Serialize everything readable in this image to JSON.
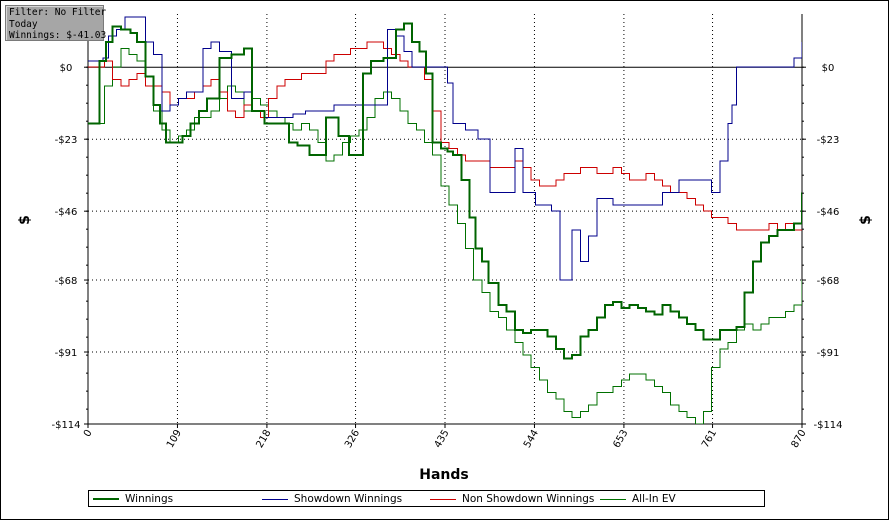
{
  "filter_box": {
    "line1": "Filter: No Filter",
    "line2": "Today",
    "line3": "Winnings: $-41.03"
  },
  "chart_data": {
    "type": "line",
    "title": "",
    "xlabel": "Hands",
    "ylabel": "$",
    "xlim": [
      0,
      870
    ],
    "ylim": [
      -114,
      17
    ],
    "x_ticks": [
      "0",
      "109",
      "218",
      "326",
      "435",
      "544",
      "653",
      "761",
      "870"
    ],
    "y_ticks": [
      "$0",
      "-$23",
      "-$46",
      "-$68",
      "-$91",
      "-$114"
    ],
    "y_tick_values": [
      0,
      -23,
      -46,
      -68,
      -91,
      -114
    ],
    "grid": true,
    "zero_line": true,
    "legend_position": "bottom",
    "series": [
      {
        "name": "Winnings",
        "color": "#006400",
        "width": 2,
        "x": [
          0,
          8,
          14,
          22,
          30,
          40,
          52,
          60,
          70,
          80,
          88,
          95,
          105,
          115,
          125,
          135,
          145,
          160,
          175,
          190,
          200,
          215,
          230,
          245,
          255,
          270,
          290,
          305,
          318,
          326,
          335,
          345,
          360,
          375,
          385,
          395,
          404,
          412,
          420,
          430,
          438,
          445,
          455,
          465,
          472,
          480,
          488,
          500,
          510,
          520,
          530,
          540,
          550,
          560,
          570,
          580,
          590,
          600,
          610,
          620,
          630,
          640,
          650,
          660,
          670,
          680,
          690,
          700,
          710,
          720,
          730,
          740,
          750,
          760,
          770,
          780,
          790,
          800,
          810,
          820,
          830,
          840,
          850,
          860,
          870
        ],
        "y": [
          -18,
          -18,
          2,
          8,
          13,
          12,
          11,
          8,
          -3,
          -12,
          -18,
          -24,
          -24,
          -22,
          -18,
          -14,
          -10,
          3,
          4,
          6,
          -14,
          -18,
          -18,
          -24,
          -25,
          -28,
          -16,
          -22,
          -28,
          -28,
          -2,
          2,
          3,
          12,
          14,
          8,
          5,
          -2,
          -24,
          -26,
          -27,
          -28,
          -36,
          -48,
          -58,
          -62,
          -69,
          -76,
          -78,
          -84,
          -85,
          -84,
          -84,
          -86,
          -90,
          -93,
          -92,
          -86,
          -84,
          -80,
          -76,
          -75,
          -77,
          -76,
          -77,
          -78,
          -79,
          -76,
          -78,
          -80,
          -82,
          -84,
          -87,
          -87,
          -84,
          -84,
          -83,
          -72,
          -62,
          -56,
          -54,
          -52,
          -52,
          -50,
          -40
        ]
      },
      {
        "name": "Showdown Winnings",
        "color": "#00008b",
        "width": 1,
        "x": [
          0,
          10,
          18,
          25,
          35,
          45,
          55,
          60,
          70,
          80,
          90,
          100,
          110,
          120,
          130,
          140,
          150,
          160,
          175,
          190,
          200,
          215,
          230,
          250,
          265,
          280,
          300,
          320,
          340,
          355,
          365,
          375,
          385,
          395,
          405,
          415,
          425,
          430,
          438,
          445,
          460,
          475,
          490,
          505,
          520,
          530,
          545,
          555,
          565,
          575,
          590,
          600,
          610,
          620,
          640,
          660,
          680,
          700,
          720,
          740,
          760,
          770,
          780,
          785,
          790,
          800,
          810,
          820,
          830,
          840,
          850,
          860,
          870
        ],
        "y": [
          2,
          2,
          3,
          10,
          12,
          16,
          16,
          16,
          8,
          4,
          -14,
          -12,
          -10,
          -8,
          -8,
          6,
          8,
          5,
          -10,
          -8,
          -14,
          -16,
          -16,
          -15,
          -14,
          -14,
          -12,
          -12,
          -12,
          -12,
          12,
          10,
          5,
          0,
          0,
          0,
          0,
          0,
          -5,
          -18,
          -20,
          -23,
          -40,
          -40,
          -26,
          -40,
          -44,
          -44,
          -46,
          -68,
          -52,
          -62,
          -54,
          -42,
          -44,
          -44,
          -44,
          -40,
          -36,
          -36,
          -40,
          -30,
          -18,
          -12,
          0,
          0,
          0,
          0,
          0,
          0,
          0,
          3,
          8
        ]
      },
      {
        "name": "Non Showdown Winnings",
        "color": "#cc0000",
        "width": 1,
        "x": [
          0,
          10,
          20,
          30,
          40,
          50,
          60,
          70,
          80,
          90,
          100,
          110,
          120,
          130,
          140,
          150,
          160,
          170,
          180,
          190,
          200,
          210,
          220,
          230,
          240,
          250,
          260,
          270,
          280,
          290,
          300,
          310,
          320,
          330,
          340,
          350,
          360,
          370,
          380,
          390,
          400,
          410,
          420,
          430,
          440,
          450,
          460,
          470,
          480,
          490,
          500,
          510,
          520,
          530,
          540,
          550,
          560,
          570,
          580,
          590,
          600,
          610,
          620,
          630,
          640,
          650,
          660,
          670,
          680,
          690,
          700,
          710,
          720,
          730,
          740,
          750,
          760,
          770,
          780,
          790,
          800,
          810,
          820,
          830,
          840,
          850,
          860,
          870
        ],
        "y": [
          0,
          0,
          2,
          -4,
          -6,
          -4,
          -2,
          -6,
          -6,
          -8,
          -12,
          -10,
          -10,
          -8,
          -6,
          -4,
          -8,
          -14,
          -16,
          -12,
          -14,
          -16,
          -10,
          -6,
          -4,
          -4,
          -2,
          -2,
          -2,
          2,
          4,
          4,
          6,
          6,
          8,
          8,
          6,
          4,
          2,
          0,
          0,
          -4,
          -14,
          -24,
          -26,
          -28,
          -30,
          -30,
          -30,
          -32,
          -32,
          -32,
          -30,
          -32,
          -36,
          -38,
          -38,
          -36,
          -34,
          -34,
          -32,
          -32,
          -34,
          -34,
          -32,
          -34,
          -36,
          -36,
          -34,
          -36,
          -38,
          -40,
          -40,
          -42,
          -44,
          -46,
          -48,
          -48,
          -50,
          -52,
          -52,
          -52,
          -52,
          -50,
          -52,
          -50,
          -52,
          -52
        ]
      },
      {
        "name": "All-In EV",
        "color": "#007000",
        "width": 1,
        "x": [
          0,
          10,
          20,
          30,
          40,
          50,
          60,
          70,
          80,
          90,
          100,
          110,
          120,
          130,
          140,
          150,
          160,
          170,
          180,
          190,
          200,
          210,
          220,
          230,
          240,
          250,
          260,
          270,
          280,
          290,
          300,
          310,
          320,
          330,
          340,
          350,
          360,
          370,
          380,
          390,
          400,
          410,
          420,
          430,
          440,
          450,
          460,
          470,
          480,
          490,
          500,
          510,
          520,
          530,
          540,
          550,
          560,
          570,
          580,
          590,
          600,
          610,
          620,
          630,
          640,
          650,
          660,
          670,
          680,
          690,
          700,
          710,
          720,
          730,
          740,
          750,
          760,
          770,
          780,
          790,
          800,
          810,
          820,
          830,
          840,
          850,
          860,
          870
        ],
        "y": [
          -18,
          -18,
          -6,
          0,
          6,
          4,
          2,
          -6,
          -14,
          -20,
          -24,
          -22,
          -20,
          -16,
          -16,
          -14,
          -10,
          -6,
          -8,
          -14,
          -10,
          -12,
          -14,
          -16,
          -18,
          -20,
          -18,
          -20,
          -24,
          -30,
          -28,
          -24,
          -22,
          -20,
          -16,
          -10,
          -8,
          -10,
          -14,
          -18,
          -20,
          -24,
          -28,
          -38,
          -44,
          -50,
          -58,
          -68,
          -72,
          -78,
          -80,
          -84,
          -88,
          -92,
          -96,
          -100,
          -104,
          -106,
          -110,
          -112,
          -110,
          -108,
          -104,
          -104,
          -102,
          -100,
          -98,
          -98,
          -100,
          -102,
          -104,
          -108,
          -110,
          -112,
          -114,
          -110,
          -96,
          -90,
          -88,
          -84,
          -82,
          -84,
          -82,
          -80,
          -80,
          -78,
          -76,
          -68
        ]
      }
    ]
  }
}
